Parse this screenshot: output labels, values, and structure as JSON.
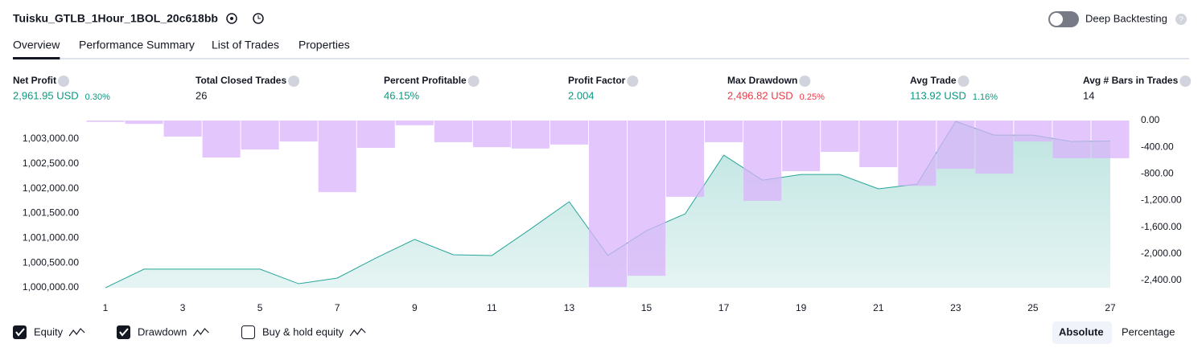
{
  "header": {
    "title": "Tuisku_GTLB_1Hour_1BOL_20c618bb",
    "toggle_label": "Deep Backtesting",
    "help": "?"
  },
  "tabs": [
    "Overview",
    "Performance Summary",
    "List of Trades",
    "Properties"
  ],
  "metrics": [
    {
      "label": "Net Profit",
      "value": "2,961.95 USD",
      "percent": "0.30%",
      "tone": "positive"
    },
    {
      "label": "Total Closed Trades",
      "value": "26",
      "tone": "neutral"
    },
    {
      "label": "Percent Profitable",
      "value": "46.15%",
      "tone": "positive"
    },
    {
      "label": "Profit Factor",
      "value": "2.004",
      "tone": "positive"
    },
    {
      "label": "Max Drawdown",
      "value": "2,496.82 USD",
      "percent": "0.25%",
      "tone": "negative"
    },
    {
      "label": "Avg Trade",
      "value": "113.92 USD",
      "percent": "1.16%",
      "tone": "positive"
    },
    {
      "label": "Avg # Bars in Trades",
      "value": "14",
      "tone": "neutral"
    }
  ],
  "chart_data": {
    "type": "combo",
    "categories": [
      1,
      null,
      3,
      null,
      5,
      null,
      7,
      null,
      9,
      null,
      11,
      null,
      13,
      null,
      15,
      null,
      17,
      null,
      19,
      null,
      21,
      null,
      23,
      null,
      25,
      null,
      27
    ],
    "series": [
      {
        "name": "Equity",
        "color": "#26a69a",
        "kind": "area",
        "axis": "y",
        "values": [
          1000000,
          1000375,
          1000375,
          1000375,
          1000375,
          1000081,
          1000195,
          1000600,
          1000975,
          1000665,
          1000650,
          1001185,
          1001735,
          1000650,
          1001150,
          1001490,
          1002675,
          1002170,
          1002285,
          1002285,
          1001995,
          1002090,
          1003357,
          1003080,
          1003080,
          1002950,
          1002962
        ]
      },
      {
        "name": "Drawdown",
        "color": "#d9b3fb",
        "kind": "bar",
        "axis": "y2",
        "values": [
          -20,
          -50,
          -240,
          -555,
          -435,
          -315,
          -1075,
          -410,
          -70,
          -325,
          -400,
          -420,
          -360,
          -2497,
          -2330,
          -1145,
          -325,
          -1205,
          -760,
          -470,
          -700,
          -980,
          -725,
          -795,
          -315,
          -565,
          -565
        ]
      }
    ],
    "ylim": [
      999968,
      1003373
    ],
    "yticks": [
      {
        "value": 1000000,
        "label": "1,000,000.00"
      },
      {
        "value": 1000500,
        "label": "1,000,500.00"
      },
      {
        "value": 1001000,
        "label": "1,001,000.00"
      },
      {
        "value": 1001500,
        "label": "1,001,500.00"
      },
      {
        "value": 1002000,
        "label": "1,002,000.00"
      },
      {
        "value": 1002500,
        "label": "1,002,500.00"
      },
      {
        "value": 1003000,
        "label": "1,003,000.00"
      }
    ],
    "y2lim": [
      -2533,
      0
    ],
    "y2ticks": [
      {
        "value": 0,
        "label": "0.00"
      },
      {
        "value": -400,
        "label": "-400.00"
      },
      {
        "value": -800,
        "label": "-800.00"
      },
      {
        "value": -1200,
        "label": "-1,200.00"
      },
      {
        "value": -1600,
        "label": "-1,600.00"
      },
      {
        "value": -2000,
        "label": "-2,000.00"
      },
      {
        "value": -2400,
        "label": "-2,400.00"
      }
    ]
  },
  "legend": {
    "items": [
      {
        "label": "Equity",
        "checked": true
      },
      {
        "label": "Drawdown",
        "checked": true
      },
      {
        "label": "Buy & hold equity",
        "checked": false
      }
    ]
  },
  "modes": [
    {
      "label": "Absolute",
      "active": true
    },
    {
      "label": "Percentage",
      "active": false
    }
  ]
}
